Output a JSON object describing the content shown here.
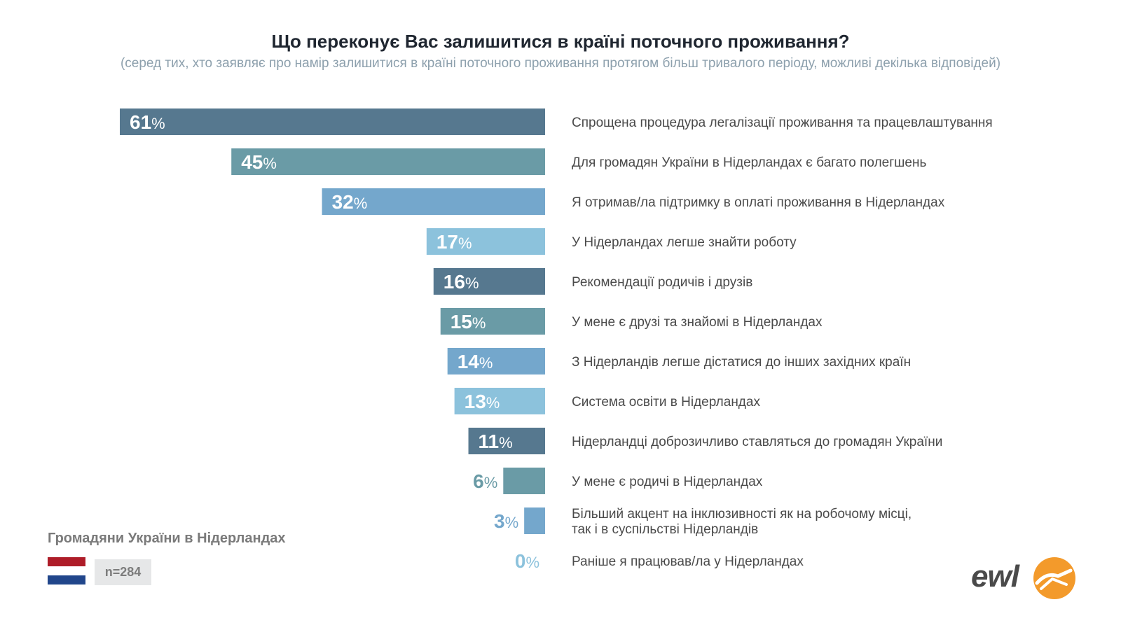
{
  "header": {
    "title": "Що переконує Вас залишитися в країні поточного проживання?",
    "subtitle": "(серед тих, хто заявляє про намір залишитися в країні поточного проживання протягом більш тривалого періоду, можливі декілька відповідей)"
  },
  "footer": {
    "country_label": "Громадяни України в Нідерландах",
    "sample": "n=284",
    "logo_text": "ewl"
  },
  "colors": {
    "palette": [
      "#56788f",
      "#6a9ba6",
      "#74a7cc",
      "#8cc2dc"
    ],
    "flag": [
      "#ae1c28",
      "#ffffff",
      "#21468b"
    ],
    "logo_accent": "#f39a2b"
  },
  "chart_data": {
    "type": "bar",
    "orientation": "horizontal",
    "unit": "%",
    "xlim": [
      0,
      61
    ],
    "categories": [
      "Спрощена процедура легалізації проживання та працевлаштування",
      "Для громадян України в Нідерландах є багато полегшень",
      "Я отримав/ла підтримку в оплаті проживання в Нідерландах",
      "У Нідерландах легше знайти роботу",
      "Рекомендації родичів і друзів",
      "У мене є друзі та знайомі в Нідерландах",
      "З Нідерландів легше дістатися до інших західних країн",
      "Система освіти в Нідерландах",
      "Нідерландці доброзичливо ставляться до громадян України",
      "У мене є родичі в Нідерландах",
      "Більший акцент на інклюзивності як на робочому місці,\nтак і в суспільстві Нідерландів",
      "Раніше я працював/ла у Нідерландах"
    ],
    "values": [
      61,
      45,
      32,
      17,
      16,
      15,
      14,
      13,
      11,
      6,
      3,
      0
    ]
  }
}
